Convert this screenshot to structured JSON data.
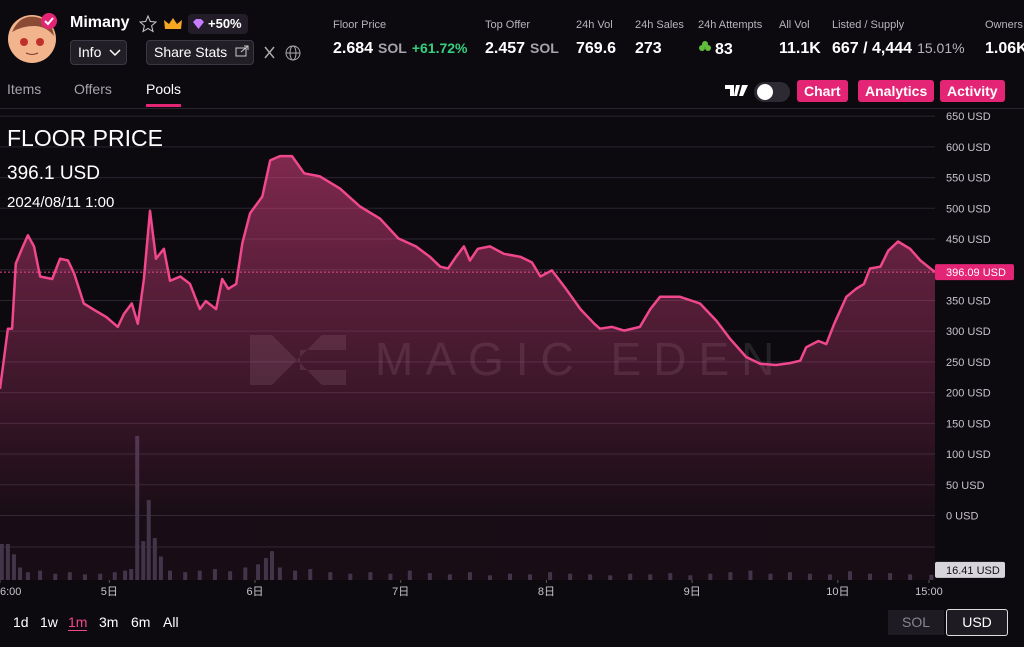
{
  "header": {
    "name": "Mimany",
    "badge": "+50%",
    "info_button": "Info",
    "share_button": "Share Stats",
    "stats": [
      {
        "label": "Floor Price",
        "value": "2.684",
        "unit": "SOL",
        "change": "+61.72%"
      },
      {
        "label": "Top Offer",
        "value": "2.457",
        "unit": "SOL"
      },
      {
        "label": "24h Vol",
        "value": "769.6"
      },
      {
        "label": "24h Sales",
        "value": "273"
      },
      {
        "label": "24h Attempts",
        "value": "83"
      },
      {
        "label": "All Vol",
        "value": "11.1K"
      },
      {
        "label": "Listed / Supply",
        "value": "667 / 4,444",
        "share": "15.01%"
      },
      {
        "label": "Owners",
        "value": "1.06K"
      }
    ]
  },
  "tabs": [
    "Items",
    "Offers",
    "Pools"
  ],
  "view_buttons": [
    "Chart",
    "Analytics",
    "Activity"
  ],
  "timeframes": [
    "1d",
    "1w",
    "1m",
    "3m",
    "6m",
    "All"
  ],
  "currencies": [
    "SOL",
    "USD"
  ],
  "chart_data": {
    "type": "line",
    "title": "FLOOR PRICE",
    "value_label": {
      "value": 396.1,
      "label": "396.1 USD"
    },
    "date_label": "2024/08/11 1:00",
    "watermark": "MAGIC EDEN",
    "color": "#f0478d",
    "grid": true,
    "x": [
      6.0,
      7.3,
      8.0,
      8.6,
      9.6,
      10.6,
      11.6,
      12.6,
      14.6,
      15.9,
      17.2,
      18.2,
      19.8,
      21.8,
      23.5,
      25.4,
      26.4,
      27.7,
      28.7,
      29.7,
      30.7,
      31.7,
      33.0,
      34.0,
      35.7,
      37.3,
      38.9,
      39.9,
      41.6,
      42.6,
      43.6,
      44.9,
      45.9,
      47.2,
      49.2,
      50.5,
      52.1,
      54.1,
      56.1,
      58.7,
      62.0,
      65.3,
      68.6,
      71.6,
      74.5,
      76.8,
      78.5,
      79.8,
      81.1,
      82.4,
      83.4,
      84.7,
      86.7,
      89.0,
      91.7,
      93.6,
      95.0,
      96.9,
      99.2,
      101.6,
      103.9,
      104.8,
      106.8,
      108.8,
      111.4,
      113.1,
      114.7,
      118.0,
      121.3,
      124.0,
      126.3,
      128.9,
      131.2,
      133.8,
      136.1,
      137.8,
      138.8,
      140.8,
      142.1,
      143.4,
      145.4,
      147.0,
      148.3,
      149.3,
      151.0,
      152.3,
      153.9,
      155.9,
      157.6,
      160.0
    ],
    "values": [
      206,
      304,
      304,
      410,
      434,
      456,
      438,
      389,
      385,
      418,
      415,
      394,
      345,
      333,
      323,
      307,
      328,
      345,
      312,
      385,
      496,
      418,
      434,
      382,
      389,
      377,
      336,
      349,
      336,
      385,
      369,
      377,
      443,
      492,
      519,
      578,
      585,
      585,
      557,
      552,
      532,
      503,
      483,
      451,
      438,
      421,
      405,
      402,
      421,
      438,
      415,
      434,
      438,
      426,
      421,
      412,
      389,
      399,
      369,
      336,
      312,
      304,
      307,
      301,
      307,
      336,
      356,
      356,
      345,
      317,
      287,
      258,
      247,
      245,
      248,
      252,
      274,
      284,
      279,
      312,
      356,
      369,
      377,
      402,
      405,
      431,
      446,
      434,
      415,
      396.09
    ],
    "xlim": [
      6,
      160
    ],
    "xticks": [
      {
        "value": 6,
        "label": "6:00"
      },
      {
        "value": 24,
        "label": "5日"
      },
      {
        "value": 48,
        "label": "6日"
      },
      {
        "value": 72,
        "label": "7日"
      },
      {
        "value": 96,
        "label": "8日"
      },
      {
        "value": 120,
        "label": "9日"
      },
      {
        "value": 144,
        "label": "10日"
      },
      {
        "value": 159,
        "label": "15:00"
      }
    ],
    "ylim": [
      -105,
      660
    ],
    "yticks": [
      {
        "value": 650,
        "label": "650 USD"
      },
      {
        "value": 600,
        "label": "600 USD"
      },
      {
        "value": 550,
        "label": "550 USD"
      },
      {
        "value": 500,
        "label": "500 USD"
      },
      {
        "value": 450,
        "label": "450 USD"
      },
      {
        "value": 400,
        "label": "400 USD"
      },
      {
        "value": 350,
        "label": "350 USD"
      },
      {
        "value": 300,
        "label": "300 USD"
      },
      {
        "value": 250,
        "label": "250 USD"
      },
      {
        "value": 200,
        "label": "200 USD"
      },
      {
        "value": 150,
        "label": "150 USD"
      },
      {
        "value": 100,
        "label": "100 USD"
      },
      {
        "value": 50,
        "label": "50 USD"
      },
      {
        "value": 0,
        "label": "0 USD"
      }
    ],
    "current_price": {
      "value": 396.09,
      "label": "396.09 USD"
    },
    "volume": {
      "type": "bar",
      "color": "#3a3346",
      "ylim": [
        0,
        1500
      ],
      "x": [
        6.3,
        7.3,
        8.3,
        9.3,
        10.6,
        12.6,
        15.1,
        17.5,
        20.0,
        22.5,
        24.9,
        26.6,
        27.6,
        28.6,
        29.6,
        30.5,
        31.5,
        32.5,
        34.0,
        36.5,
        38.9,
        41.4,
        43.9,
        46.4,
        48.5,
        49.8,
        50.8,
        52.1,
        54.6,
        57.1,
        60.4,
        63.7,
        67.0,
        70.3,
        73.5,
        76.8,
        80.1,
        83.4,
        86.7,
        90.0,
        93.3,
        96.6,
        99.9,
        103.2,
        106.5,
        109.8,
        113.1,
        116.4,
        119.7,
        123.0,
        126.3,
        129.6,
        132.9,
        136.1,
        139.4,
        142.7,
        146.0,
        149.3,
        152.6,
        155.9,
        159.4
      ],
      "values": [
        115,
        115,
        82,
        40,
        25,
        30,
        20,
        25,
        18,
        20,
        25,
        30,
        35,
        460,
        124,
        255,
        134,
        75,
        30,
        25,
        30,
        35,
        28,
        40,
        50,
        70,
        92,
        40,
        30,
        35,
        25,
        20,
        25,
        20,
        30,
        22,
        18,
        25,
        15,
        20,
        18,
        25,
        20,
        18,
        15,
        20,
        18,
        22,
        15,
        20,
        25,
        30,
        20,
        25,
        20,
        18,
        28,
        20,
        22,
        18,
        16.41
      ],
      "current": {
        "value": 16.41,
        "label": "16.41 USD"
      }
    }
  }
}
